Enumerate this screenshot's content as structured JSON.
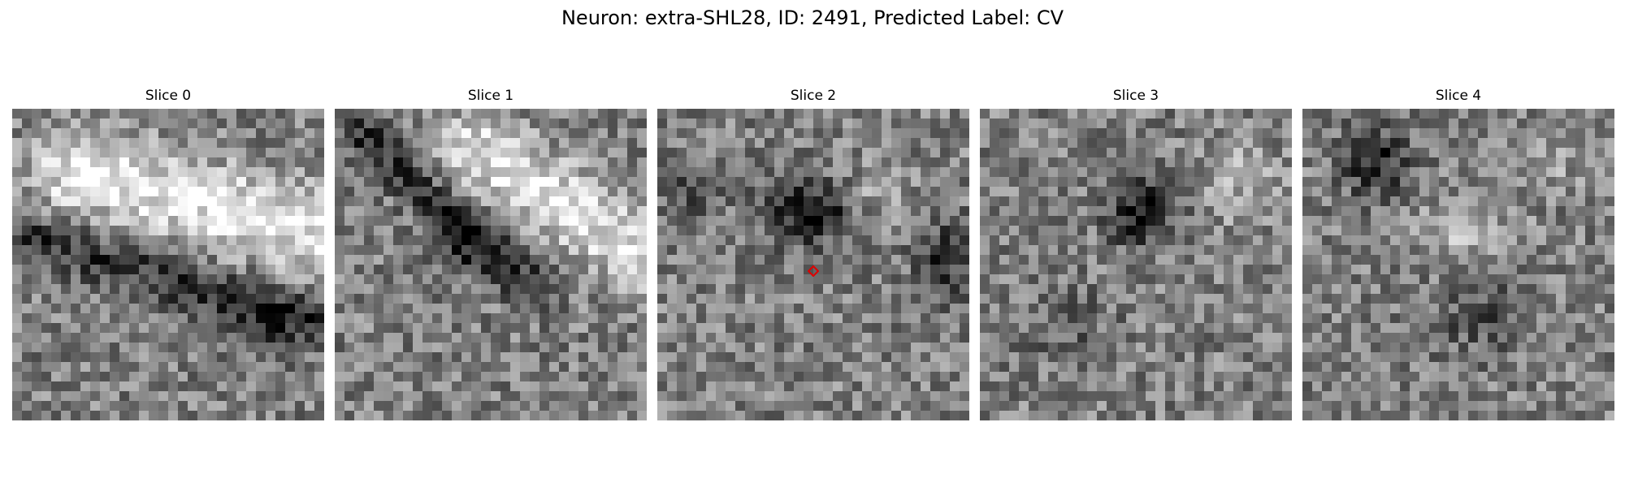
{
  "figure": {
    "title": "Neuron: extra-SHL28, ID: 2491, Predicted Label: CV"
  },
  "slices": [
    {
      "title": "Slice 0"
    },
    {
      "title": "Slice 1"
    },
    {
      "title": "Slice 2",
      "marker": {
        "shape": "diamond-icon",
        "color": "#e00000"
      }
    },
    {
      "title": "Slice 3"
    },
    {
      "title": "Slice 4"
    }
  ],
  "colors": {
    "background": "#ffffff",
    "marker": "#e00000",
    "colormap": "gray"
  }
}
